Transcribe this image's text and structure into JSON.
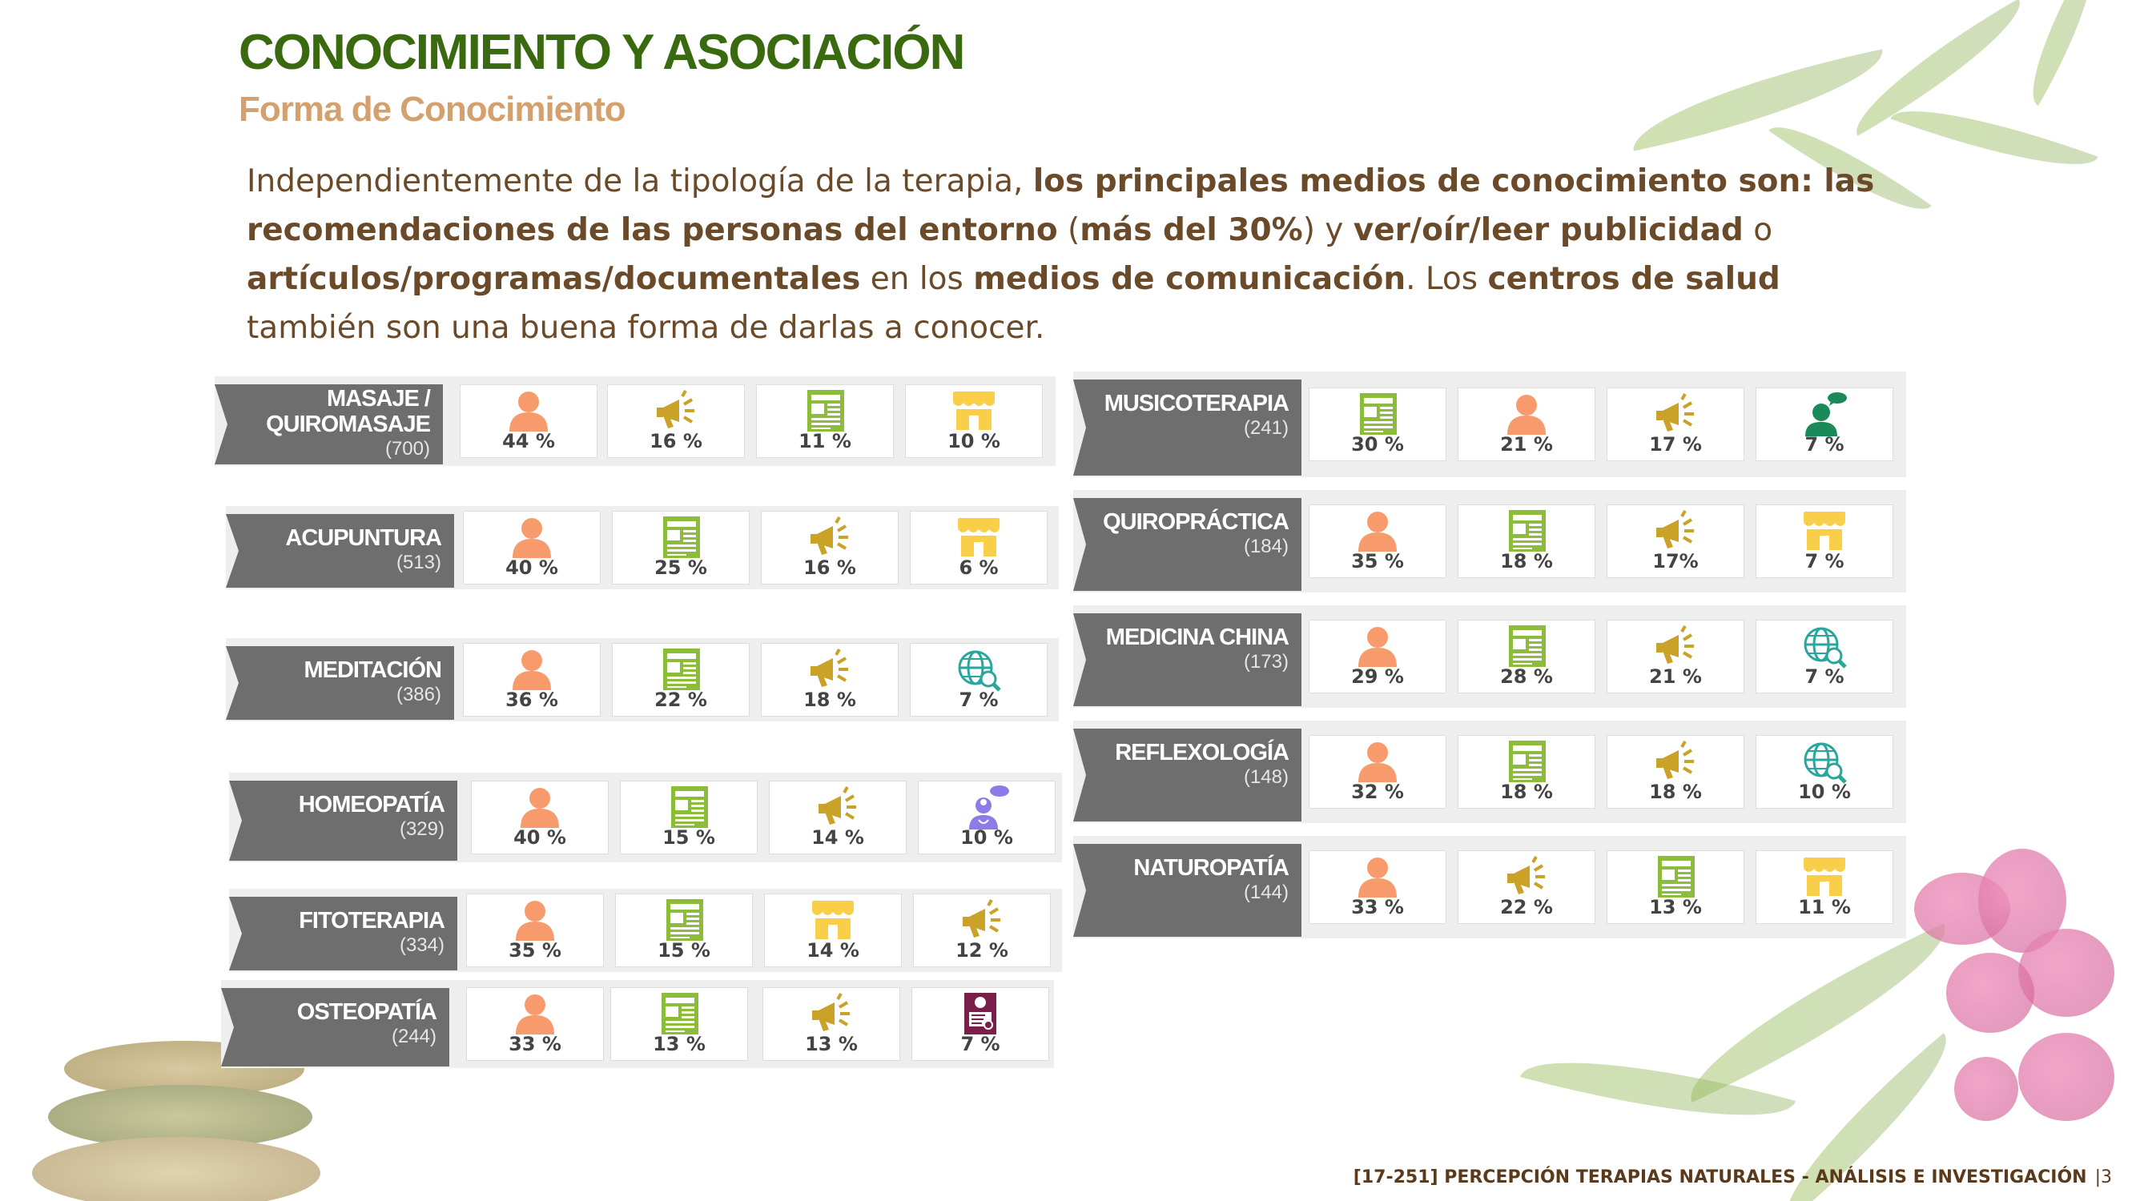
{
  "header": {
    "title": "CONOCIMIENTO Y ASOCIACIÓN",
    "subtitle": "Forma de Conocimiento"
  },
  "intro": {
    "p1": "Independientemente de la tipología de la terapia, ",
    "b1": "los principales medios de conocimiento son: las recomendaciones de las personas del entorno",
    "p2": " (",
    "b2": "más del 30%",
    "p3": ") y ",
    "b3": "ver/oír/leer publicidad",
    "p4": " o ",
    "b4": "artículos/programas/documentales",
    "p5": " en los ",
    "b5": "medios de comunicación",
    "p6": ". Los ",
    "b6": "centros de salud",
    "p7": " también son una buena forma de darlas a conocer."
  },
  "icons": {
    "person-icon": "#f79b6c",
    "megaphone-icon": "#c9a227",
    "newspaper-icon": "#8cbd3a",
    "store-icon": "#f9cf4a",
    "globe-search-icon": "#2aa69c",
    "consultant-icon": "#1a8a5a",
    "doctor-chat-icon": "#8b7ce8",
    "brochure-icon": "#7a1e4a"
  },
  "left": [
    {
      "name": "MASAJE / QUIROMASAJE",
      "n": "(700)",
      "items": [
        {
          "icon": "person-icon",
          "pct": "44 %"
        },
        {
          "icon": "megaphone-icon",
          "pct": "16 %"
        },
        {
          "icon": "newspaper-icon",
          "pct": "11 %"
        },
        {
          "icon": "store-icon",
          "pct": "10 %"
        }
      ]
    },
    {
      "name": "ACUPUNTURA",
      "n": "(513)",
      "items": [
        {
          "icon": "person-icon",
          "pct": "40 %"
        },
        {
          "icon": "newspaper-icon",
          "pct": "25 %"
        },
        {
          "icon": "megaphone-icon",
          "pct": "16 %"
        },
        {
          "icon": "store-icon",
          "pct": "6 %"
        }
      ]
    },
    {
      "name": "MEDITACIÓN",
      "n": "(386)",
      "items": [
        {
          "icon": "person-icon",
          "pct": "36 %"
        },
        {
          "icon": "newspaper-icon",
          "pct": "22 %"
        },
        {
          "icon": "megaphone-icon",
          "pct": "18 %"
        },
        {
          "icon": "globe-search-icon",
          "pct": "7 %"
        }
      ]
    },
    {
      "name": "HOMEOPATÍA",
      "n": "(329)",
      "items": [
        {
          "icon": "person-icon",
          "pct": "40 %"
        },
        {
          "icon": "newspaper-icon",
          "pct": "15 %"
        },
        {
          "icon": "megaphone-icon",
          "pct": "14 %"
        },
        {
          "icon": "doctor-chat-icon",
          "pct": "10 %"
        }
      ]
    },
    {
      "name": "FITOTERAPIA",
      "n": "(334)",
      "items": [
        {
          "icon": "person-icon",
          "pct": "35 %"
        },
        {
          "icon": "newspaper-icon",
          "pct": "15 %"
        },
        {
          "icon": "store-icon",
          "pct": "14 %"
        },
        {
          "icon": "megaphone-icon",
          "pct": "12 %"
        }
      ]
    },
    {
      "name": "OSTEOPATÍA",
      "n": "(244)",
      "items": [
        {
          "icon": "person-icon",
          "pct": "33 %"
        },
        {
          "icon": "newspaper-icon",
          "pct": "13 %"
        },
        {
          "icon": "megaphone-icon",
          "pct": "13 %"
        },
        {
          "icon": "brochure-icon",
          "pct": "7 %"
        }
      ]
    }
  ],
  "right": [
    {
      "name": "MUSICOTERAPIA",
      "n": "(241)",
      "items": [
        {
          "icon": "newspaper-icon",
          "pct": "30 %"
        },
        {
          "icon": "person-icon",
          "pct": "21 %"
        },
        {
          "icon": "megaphone-icon",
          "pct": "17 %"
        },
        {
          "icon": "consultant-icon",
          "pct": "7 %"
        }
      ]
    },
    {
      "name": "QUIROPRÁCTICA",
      "n": "(184)",
      "items": [
        {
          "icon": "person-icon",
          "pct": "35 %"
        },
        {
          "icon": "newspaper-icon",
          "pct": "18 %"
        },
        {
          "icon": "megaphone-icon",
          "pct": "17%"
        },
        {
          "icon": "store-icon",
          "pct": "7 %"
        }
      ]
    },
    {
      "name": "MEDICINA CHINA",
      "n": "(173)",
      "items": [
        {
          "icon": "person-icon",
          "pct": "29 %"
        },
        {
          "icon": "newspaper-icon",
          "pct": "28 %"
        },
        {
          "icon": "megaphone-icon",
          "pct": "21 %"
        },
        {
          "icon": "globe-search-icon",
          "pct": "7 %"
        }
      ]
    },
    {
      "name": "REFLEXOLOGÍA",
      "n": "(148)",
      "items": [
        {
          "icon": "person-icon",
          "pct": "32 %"
        },
        {
          "icon": "newspaper-icon",
          "pct": "18 %"
        },
        {
          "icon": "megaphone-icon",
          "pct": "18 %"
        },
        {
          "icon": "globe-search-icon",
          "pct": "10 %"
        }
      ]
    },
    {
      "name": "NATUROPATÍA",
      "n": "(144)",
      "items": [
        {
          "icon": "person-icon",
          "pct": "33 %"
        },
        {
          "icon": "megaphone-icon",
          "pct": "22 %"
        },
        {
          "icon": "newspaper-icon",
          "pct": "13 %"
        },
        {
          "icon": "store-icon",
          "pct": "11 %"
        }
      ]
    }
  ],
  "footer": {
    "text": "[17-251] PERCEPCIÓN TERAPIAS NATURALES - ANÁLISIS E INVESTIGACIÓN",
    "page": "|3"
  }
}
